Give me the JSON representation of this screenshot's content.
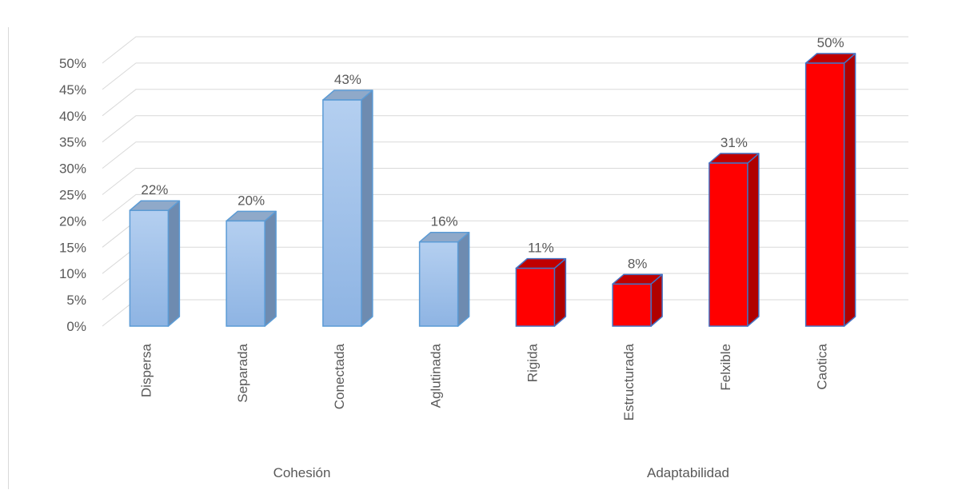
{
  "chart_data": {
    "type": "bar",
    "title": "",
    "xlabel": "",
    "ylabel": "",
    "ylim": [
      0,
      50
    ],
    "yticks": [
      "0%",
      "5%",
      "10%",
      "15%",
      "20%",
      "25%",
      "30%",
      "35%",
      "40%",
      "45%",
      "50%"
    ],
    "grid": true,
    "legend": "none",
    "groups": [
      {
        "name": "Cohesión",
        "color": "#9dc3e6"
      },
      {
        "name": "Adaptabilidad",
        "color": "#ff0000"
      }
    ],
    "categories": [
      "Dispersa",
      "Separada",
      "Conectada",
      "Aglutinada",
      "Rigida",
      "Estructurada",
      "Felxible",
      "Caotica"
    ],
    "group_index": [
      0,
      0,
      0,
      0,
      1,
      1,
      1,
      1
    ],
    "values": [
      22,
      20,
      43,
      16,
      11,
      8,
      31,
      50
    ],
    "value_labels": [
      "22%",
      "20%",
      "43%",
      "16%",
      "11%",
      "8%",
      "31%",
      "50%"
    ]
  }
}
